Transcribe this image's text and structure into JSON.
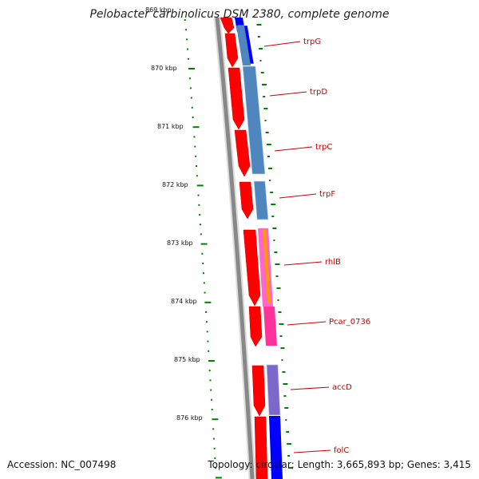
{
  "title": "Pelobacter carbinolicus DSM 2380, complete genome",
  "accession_label": "Accession: NC_007498",
  "topology_label": "Topology: circular; Length: 3,665,893 bp; Genes: 3,415",
  "ticks": [
    "869 kbp",
    "870 kbp",
    "871 kbp",
    "872 kbp",
    "873 kbp",
    "874 kbp",
    "875 kbp",
    "876 kbp"
  ],
  "genes": [
    {
      "name": "trpG"
    },
    {
      "name": "trpD"
    },
    {
      "name": "trpC"
    },
    {
      "name": "trpF"
    },
    {
      "name": "rhlB"
    },
    {
      "name": "Pcar_0736"
    },
    {
      "name": "accD"
    },
    {
      "name": "folC"
    }
  ],
  "colors": {
    "backbone": "#888888",
    "cds_forward": "#ff0000",
    "trp_operon": "#4f86bd",
    "blue_feature": "#0000ff",
    "rhlB": "#ff66cc",
    "rhlB_stripe": "#ff9900",
    "pcar": "#ff3399",
    "accD": "#7b68c8",
    "gc_skew": "#008000",
    "label": "#cc0000"
  }
}
